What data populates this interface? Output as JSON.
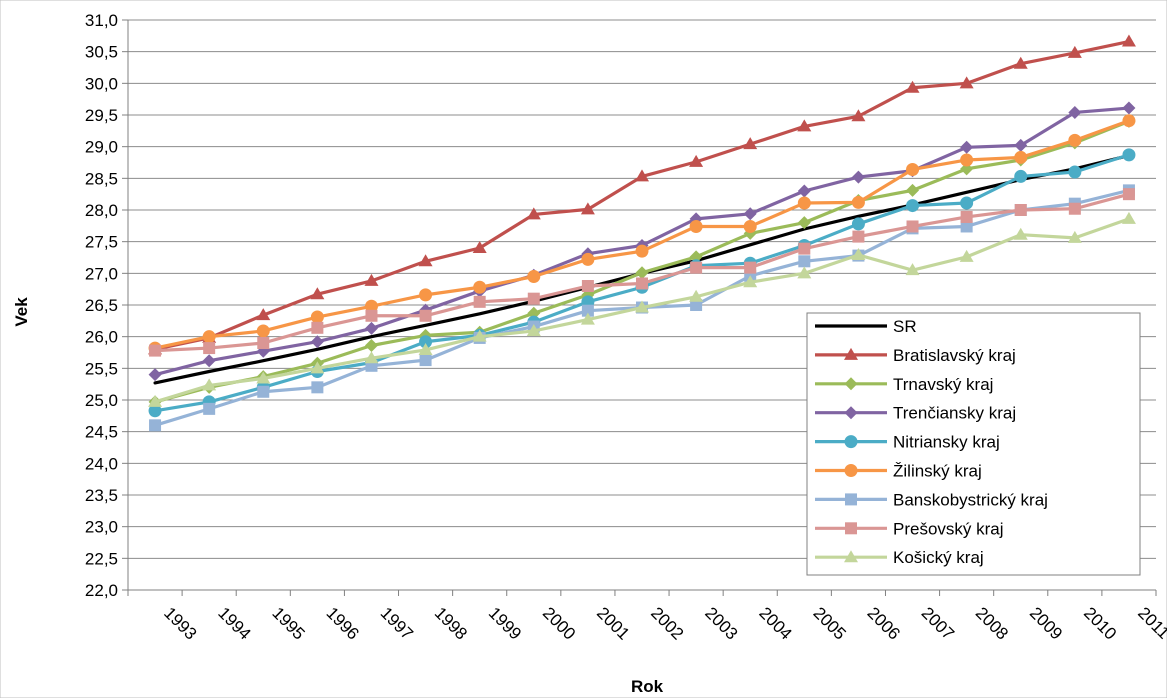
{
  "chart_data": {
    "type": "line",
    "xlabel": "Rok",
    "ylabel": "Vek",
    "ylim": [
      22.0,
      31.0
    ],
    "ytick_step": 0.5,
    "grid": true,
    "legend_position": "bottom-right",
    "categories": [
      "1993",
      "1994",
      "1995",
      "1996",
      "1997",
      "1998",
      "1999",
      "2000",
      "2001",
      "2002",
      "2003",
      "2004",
      "2005",
      "2006",
      "2007",
      "2008",
      "2009",
      "2010",
      "2011"
    ],
    "series": [
      {
        "name": "SR",
        "color": "#000000",
        "marker": "none",
        "values": [
          25.27,
          25.45,
          25.62,
          25.8,
          26.0,
          26.18,
          26.36,
          26.56,
          26.78,
          27.0,
          27.2,
          27.45,
          27.7,
          27.9,
          28.08,
          28.28,
          28.48,
          28.65,
          28.86
        ]
      },
      {
        "name": "Bratislavský kraj",
        "color": "#c0504d",
        "marker": "triangle",
        "values": [
          25.8,
          25.98,
          26.34,
          26.67,
          26.88,
          27.19,
          27.4,
          27.93,
          28.01,
          28.53,
          28.76,
          29.04,
          29.32,
          29.48,
          29.93,
          30.0,
          30.31,
          30.48,
          30.66
        ]
      },
      {
        "name": "Trnavský kraj",
        "color": "#9bbb59",
        "marker": "diamond",
        "values": [
          24.97,
          25.2,
          25.37,
          25.58,
          25.86,
          26.02,
          26.07,
          26.37,
          26.66,
          27.01,
          27.26,
          27.63,
          27.8,
          28.15,
          28.31,
          28.65,
          28.79,
          29.06,
          29.4
        ]
      },
      {
        "name": "Trenčiansky kraj",
        "color": "#8064a2",
        "marker": "diamond",
        "values": [
          25.4,
          25.62,
          25.77,
          25.92,
          26.13,
          26.42,
          26.72,
          26.97,
          27.31,
          27.44,
          27.86,
          27.94,
          28.3,
          28.52,
          28.62,
          28.99,
          29.02,
          29.54,
          29.61
        ]
      },
      {
        "name": "Nitriansky kraj",
        "color": "#4bacc6",
        "marker": "circle",
        "values": [
          24.83,
          24.97,
          25.2,
          25.45,
          25.59,
          25.92,
          26.02,
          26.23,
          26.55,
          26.78,
          27.12,
          27.16,
          27.44,
          27.78,
          28.07,
          28.11,
          28.53,
          28.6,
          28.87
        ]
      },
      {
        "name": "Žilinský kraj",
        "color": "#f79646",
        "marker": "circle",
        "values": [
          25.82,
          26.0,
          26.09,
          26.31,
          26.48,
          26.66,
          26.78,
          26.95,
          27.22,
          27.35,
          27.74,
          27.74,
          28.11,
          28.12,
          28.64,
          28.79,
          28.83,
          29.1,
          29.41
        ]
      },
      {
        "name": "Banskobystrický kraj",
        "color": "#95b3d7",
        "marker": "square",
        "values": [
          24.6,
          24.86,
          25.13,
          25.2,
          25.54,
          25.63,
          25.98,
          26.16,
          26.41,
          26.46,
          26.5,
          26.96,
          27.19,
          27.28,
          27.71,
          27.74,
          28.0,
          28.1,
          28.31
        ]
      },
      {
        "name": "Prešovský kraj",
        "color": "#da9694",
        "marker": "square",
        "values": [
          25.78,
          25.82,
          25.9,
          26.14,
          26.33,
          26.33,
          26.55,
          26.6,
          26.8,
          26.84,
          27.09,
          27.09,
          27.39,
          27.58,
          27.74,
          27.89,
          28.0,
          28.02,
          28.25
        ]
      },
      {
        "name": "Košický kraj",
        "color": "#c3d69b",
        "marker": "triangle",
        "values": [
          24.97,
          25.23,
          25.34,
          25.5,
          25.66,
          25.79,
          26.0,
          26.09,
          26.27,
          26.46,
          26.63,
          26.86,
          27.0,
          27.29,
          27.05,
          27.26,
          27.61,
          27.56,
          27.86
        ]
      }
    ]
  }
}
